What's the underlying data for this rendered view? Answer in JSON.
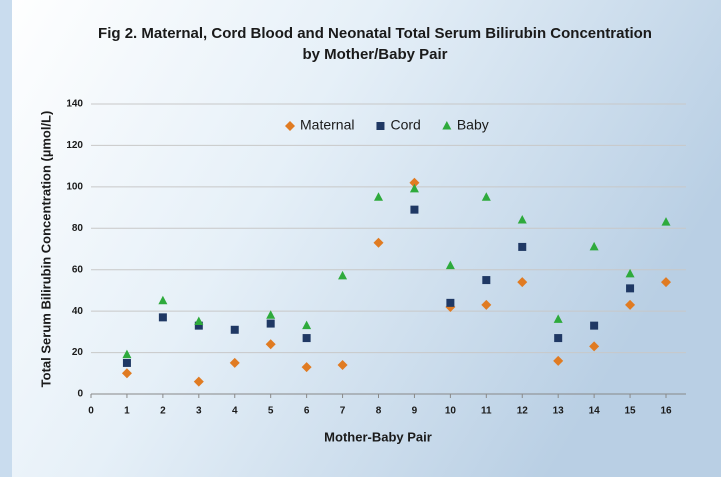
{
  "chart_data": {
    "type": "scatter",
    "title": [
      "Fig 2. Maternal, Cord Blood and Neonatal Total Serum Bilirubin Concentration",
      "by Mother/Baby Pair"
    ],
    "x_label": "Mother-Baby Pair",
    "y_label": "Total Serum Bilirubin Concentration (µmol/L)",
    "x": [
      1,
      2,
      3,
      4,
      5,
      6,
      7,
      8,
      9,
      10,
      11,
      12,
      13,
      14,
      15,
      16
    ],
    "series": [
      {
        "name": "Maternal",
        "color": "#e07b22",
        "marker": "diamond",
        "values": [
          10,
          null,
          6,
          15,
          24,
          13,
          14,
          73,
          102,
          42,
          43,
          54,
          16,
          23,
          43,
          54
        ]
      },
      {
        "name": "Cord",
        "color": "#1f3864",
        "marker": "square",
        "values": [
          15,
          37,
          33,
          31,
          34,
          27,
          null,
          null,
          89,
          44,
          55,
          71,
          27,
          33,
          51,
          null
        ]
      },
      {
        "name": "Baby",
        "color": "#2eaa3c",
        "marker": "triangle",
        "values": [
          19,
          45,
          35,
          null,
          38,
          33,
          57,
          95,
          99,
          62,
          95,
          84,
          36,
          71,
          58,
          83
        ]
      }
    ],
    "xlim": [
      0,
      16
    ],
    "xticks": [
      0,
      1,
      2,
      3,
      4,
      5,
      6,
      7,
      8,
      9,
      10,
      11,
      12,
      13,
      14,
      15,
      16
    ],
    "ylim": [
      0,
      140
    ],
    "yticks": [
      0,
      20,
      40,
      60,
      80,
      100,
      120,
      140
    ],
    "grid": true,
    "legend": "top"
  }
}
